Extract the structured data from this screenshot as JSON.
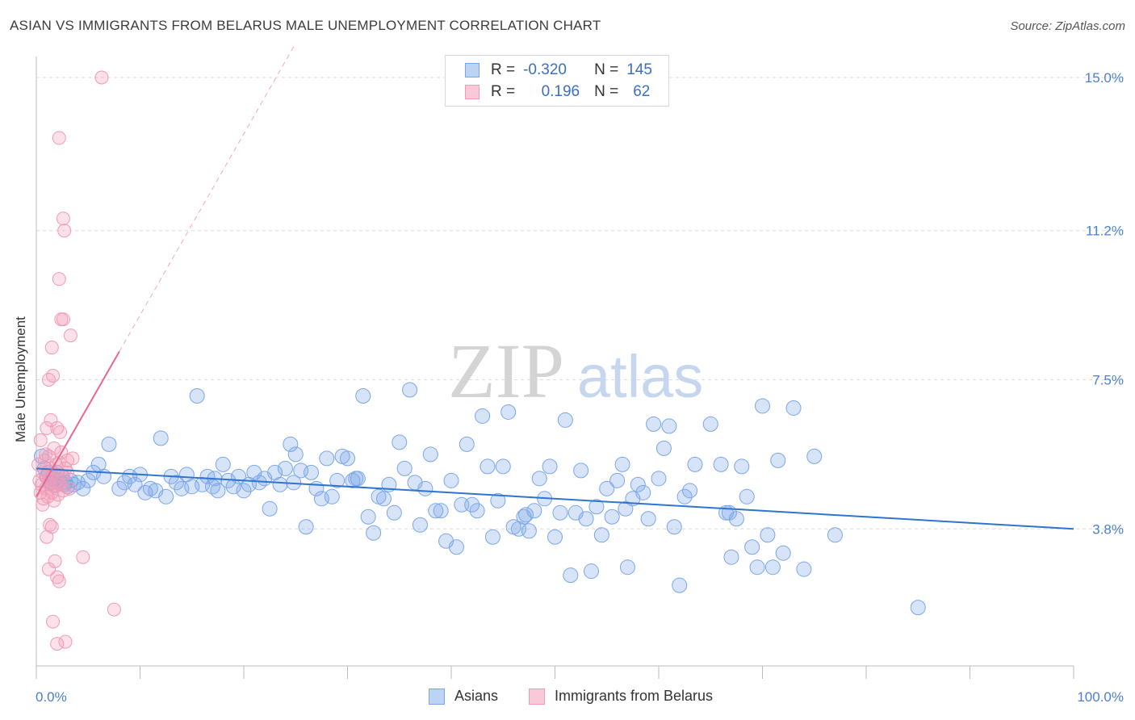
{
  "header": {
    "title": "ASIAN VS IMMIGRANTS FROM BELARUS MALE UNEMPLOYMENT CORRELATION CHART",
    "source": "Source: ZipAtlas.com"
  },
  "watermark": {
    "zip": "ZIP",
    "atlas": "atlas"
  },
  "legend": {
    "rows": [
      {
        "r_label": "R =",
        "r_value": "-0.320",
        "n_label": "N =",
        "n_value": "145",
        "color": "#7aa6e8"
      },
      {
        "r_label": "R =",
        "r_value": "0.196",
        "n_label": "N =",
        "n_value": "62",
        "color": "#f29ab5"
      }
    ]
  },
  "bottom_legend": {
    "asians": "Asians",
    "belarus": "Immigrants from Belarus"
  },
  "chart_data": {
    "type": "scatter",
    "title": "ASIAN VS IMMIGRANTS FROM BELARUS MALE UNEMPLOYMENT CORRELATION CHART",
    "xlabel": "",
    "ylabel": "Male Unemployment",
    "xlim": [
      0,
      100
    ],
    "ylim": [
      0,
      15.5
    ],
    "x_tick_labels": [
      "0.0%",
      "100.0%"
    ],
    "y_ticks": [
      3.8,
      7.5,
      11.2,
      15.0
    ],
    "y_tick_labels": [
      "3.8%",
      "7.5%",
      "11.2%",
      "15.0%"
    ],
    "grid": true,
    "series": [
      {
        "name": "Asians",
        "color": "#7aa6e8",
        "trend": {
          "x": [
            0,
            100
          ],
          "y": [
            5.3,
            3.8
          ]
        },
        "points": [
          [
            0.5,
            5.6
          ],
          [
            0.8,
            5.3
          ],
          [
            1.0,
            5.1
          ],
          [
            1.2,
            5.2
          ],
          [
            1.4,
            4.95
          ],
          [
            1.6,
            5.05
          ],
          [
            1.8,
            4.9
          ],
          [
            2.0,
            5.2
          ],
          [
            2.2,
            5.0
          ],
          [
            2.5,
            5.1
          ],
          [
            2.8,
            4.95
          ],
          [
            3.0,
            4.85
          ],
          [
            3.3,
            5.0
          ],
          [
            3.6,
            4.9
          ],
          [
            4.0,
            4.95
          ],
          [
            4.5,
            4.8
          ],
          [
            5.0,
            5.0
          ],
          [
            5.5,
            5.2
          ],
          [
            6.0,
            5.4
          ],
          [
            7.0,
            5.9
          ],
          [
            8.0,
            4.8
          ],
          [
            9.0,
            5.1
          ],
          [
            9.5,
            4.9
          ],
          [
            10.0,
            5.15
          ],
          [
            10.5,
            4.7
          ],
          [
            11.0,
            4.8
          ],
          [
            11.5,
            4.75
          ],
          [
            12.0,
            6.05
          ],
          [
            12.5,
            4.6
          ],
          [
            13.0,
            5.1
          ],
          [
            13.5,
            4.95
          ],
          [
            14.0,
            4.8
          ],
          [
            14.5,
            5.15
          ],
          [
            15.0,
            4.85
          ],
          [
            15.5,
            7.1
          ],
          [
            16.0,
            4.9
          ],
          [
            16.5,
            5.1
          ],
          [
            17.0,
            4.85
          ],
          [
            17.5,
            4.75
          ],
          [
            18.0,
            5.4
          ],
          [
            18.5,
            5.0
          ],
          [
            19.0,
            4.85
          ],
          [
            19.5,
            5.1
          ],
          [
            20.0,
            4.75
          ],
          [
            20.5,
            4.9
          ],
          [
            21.0,
            5.2
          ],
          [
            21.5,
            4.95
          ],
          [
            22.0,
            5.05
          ],
          [
            22.5,
            4.3
          ],
          [
            23.0,
            5.2
          ],
          [
            23.5,
            4.9
          ],
          [
            24.0,
            5.3
          ],
          [
            24.5,
            5.9
          ],
          [
            25.0,
            5.65
          ],
          [
            25.5,
            5.25
          ],
          [
            26.0,
            3.85
          ],
          [
            26.5,
            5.2
          ],
          [
            27.0,
            4.8
          ],
          [
            27.5,
            4.55
          ],
          [
            28.0,
            5.55
          ],
          [
            28.5,
            4.6
          ],
          [
            29.0,
            5.0
          ],
          [
            29.5,
            5.6
          ],
          [
            30.0,
            5.55
          ],
          [
            30.5,
            5.0
          ],
          [
            31.0,
            5.05
          ],
          [
            31.5,
            7.1
          ],
          [
            32.0,
            4.1
          ],
          [
            32.5,
            3.7
          ],
          [
            33.0,
            4.6
          ],
          [
            33.5,
            4.55
          ],
          [
            34.0,
            4.9
          ],
          [
            34.5,
            4.2
          ],
          [
            35.0,
            5.95
          ],
          [
            35.5,
            5.3
          ],
          [
            36.0,
            7.25
          ],
          [
            36.5,
            4.95
          ],
          [
            37.0,
            3.9
          ],
          [
            37.5,
            4.8
          ],
          [
            38.0,
            5.65
          ],
          [
            38.5,
            4.25
          ],
          [
            39.0,
            4.25
          ],
          [
            39.5,
            3.5
          ],
          [
            40.0,
            5.0
          ],
          [
            40.5,
            3.35
          ],
          [
            41.0,
            4.4
          ],
          [
            41.5,
            5.9
          ],
          [
            42.0,
            4.4
          ],
          [
            42.5,
            4.25
          ],
          [
            43.0,
            6.6
          ],
          [
            43.5,
            5.35
          ],
          [
            44.0,
            3.6
          ],
          [
            44.5,
            4.5
          ],
          [
            45.0,
            5.35
          ],
          [
            45.5,
            6.7
          ],
          [
            46.0,
            3.85
          ],
          [
            46.5,
            3.8
          ],
          [
            47.0,
            4.1
          ],
          [
            47.5,
            3.75
          ],
          [
            48.0,
            4.25
          ],
          [
            48.5,
            5.05
          ],
          [
            49.0,
            4.55
          ],
          [
            49.5,
            5.35
          ],
          [
            50.0,
            3.6
          ],
          [
            50.5,
            4.2
          ],
          [
            51.0,
            6.5
          ],
          [
            51.5,
            2.65
          ],
          [
            52.0,
            4.2
          ],
          [
            52.5,
            5.25
          ],
          [
            53.0,
            4.05
          ],
          [
            53.5,
            2.75
          ],
          [
            54.0,
            4.35
          ],
          [
            54.5,
            3.65
          ],
          [
            55.0,
            4.8
          ],
          [
            55.5,
            4.1
          ],
          [
            56.0,
            5.0
          ],
          [
            56.5,
            5.4
          ],
          [
            57.0,
            2.85
          ],
          [
            57.5,
            4.55
          ],
          [
            58.0,
            4.9
          ],
          [
            58.5,
            4.7
          ],
          [
            59.0,
            4.05
          ],
          [
            59.5,
            6.4
          ],
          [
            60.0,
            5.05
          ],
          [
            60.5,
            5.8
          ],
          [
            61.0,
            6.35
          ],
          [
            61.5,
            3.85
          ],
          [
            62.0,
            2.4
          ],
          [
            62.5,
            4.6
          ],
          [
            63.0,
            4.75
          ],
          [
            63.5,
            5.4
          ],
          [
            65.0,
            6.4
          ],
          [
            66.0,
            5.4
          ],
          [
            66.5,
            4.2
          ],
          [
            67.0,
            3.1
          ],
          [
            67.5,
            4.05
          ],
          [
            68.0,
            5.35
          ],
          [
            68.5,
            4.6
          ],
          [
            69.0,
            3.35
          ],
          [
            69.5,
            2.85
          ],
          [
            70.0,
            6.85
          ],
          [
            70.5,
            3.65
          ],
          [
            71.0,
            2.85
          ],
          [
            71.5,
            5.5
          ],
          [
            72.0,
            3.2
          ],
          [
            73.0,
            6.8
          ],
          [
            74.0,
            2.8
          ],
          [
            75.0,
            5.6
          ],
          [
            77.0,
            3.65
          ],
          [
            85.0,
            1.85
          ],
          [
            1.5,
            4.95
          ],
          [
            2.7,
            4.9
          ],
          [
            6.5,
            5.1
          ],
          [
            8.5,
            4.95
          ],
          [
            17.2,
            5.05
          ],
          [
            24.8,
            4.95
          ],
          [
            30.8,
            5.05
          ],
          [
            47.2,
            4.15
          ],
          [
            56.8,
            4.3
          ],
          [
            66.8,
            4.2
          ]
        ]
      },
      {
        "name": "Immigrants from Belarus",
        "color": "#f29ab5",
        "trend": {
          "x": [
            0,
            8
          ],
          "y": [
            4.6,
            8.2
          ]
        },
        "points": [
          [
            0.2,
            5.4
          ],
          [
            0.3,
            5.0
          ],
          [
            0.4,
            4.7
          ],
          [
            0.5,
            4.9
          ],
          [
            0.6,
            5.2
          ],
          [
            0.7,
            4.55
          ],
          [
            0.8,
            5.5
          ],
          [
            0.9,
            4.8
          ],
          [
            1.0,
            5.1
          ],
          [
            1.1,
            4.6
          ],
          [
            1.2,
            5.6
          ],
          [
            1.3,
            4.9
          ],
          [
            1.4,
            5.3
          ],
          [
            1.5,
            4.7
          ],
          [
            1.6,
            5.2
          ],
          [
            1.7,
            5.8
          ],
          [
            1.8,
            4.85
          ],
          [
            1.9,
            5.4
          ],
          [
            2.0,
            5.0
          ],
          [
            2.1,
            4.65
          ],
          [
            2.2,
            5.45
          ],
          [
            2.3,
            4.9
          ],
          [
            2.5,
            5.1
          ],
          [
            2.6,
            4.75
          ],
          [
            2.8,
            5.3
          ],
          [
            3.0,
            5.5
          ],
          [
            3.2,
            4.8
          ],
          [
            3.5,
            5.55
          ],
          [
            1.0,
            6.3
          ],
          [
            1.4,
            6.5
          ],
          [
            2.0,
            6.3
          ],
          [
            2.3,
            6.2
          ],
          [
            1.2,
            7.5
          ],
          [
            1.6,
            7.6
          ],
          [
            2.4,
            9.0
          ],
          [
            2.6,
            9.0
          ],
          [
            3.3,
            8.6
          ],
          [
            2.2,
            10.0
          ],
          [
            2.6,
            11.5
          ],
          [
            2.7,
            11.2
          ],
          [
            2.2,
            13.5
          ],
          [
            6.3,
            15.0
          ],
          [
            1.5,
            8.3
          ],
          [
            1.0,
            3.6
          ],
          [
            1.3,
            3.9
          ],
          [
            1.5,
            3.85
          ],
          [
            1.8,
            3.0
          ],
          [
            2.0,
            2.6
          ],
          [
            2.2,
            2.5
          ],
          [
            1.2,
            2.8
          ],
          [
            1.6,
            1.5
          ],
          [
            2.0,
            0.95
          ],
          [
            2.8,
            1.0
          ],
          [
            7.5,
            1.8
          ],
          [
            4.5,
            3.1
          ],
          [
            0.6,
            4.4
          ],
          [
            0.9,
            5.65
          ],
          [
            1.3,
            5.05
          ],
          [
            1.7,
            4.5
          ],
          [
            2.4,
            5.7
          ],
          [
            0.4,
            6.0
          ],
          [
            3.0,
            5.2
          ]
        ]
      }
    ]
  }
}
